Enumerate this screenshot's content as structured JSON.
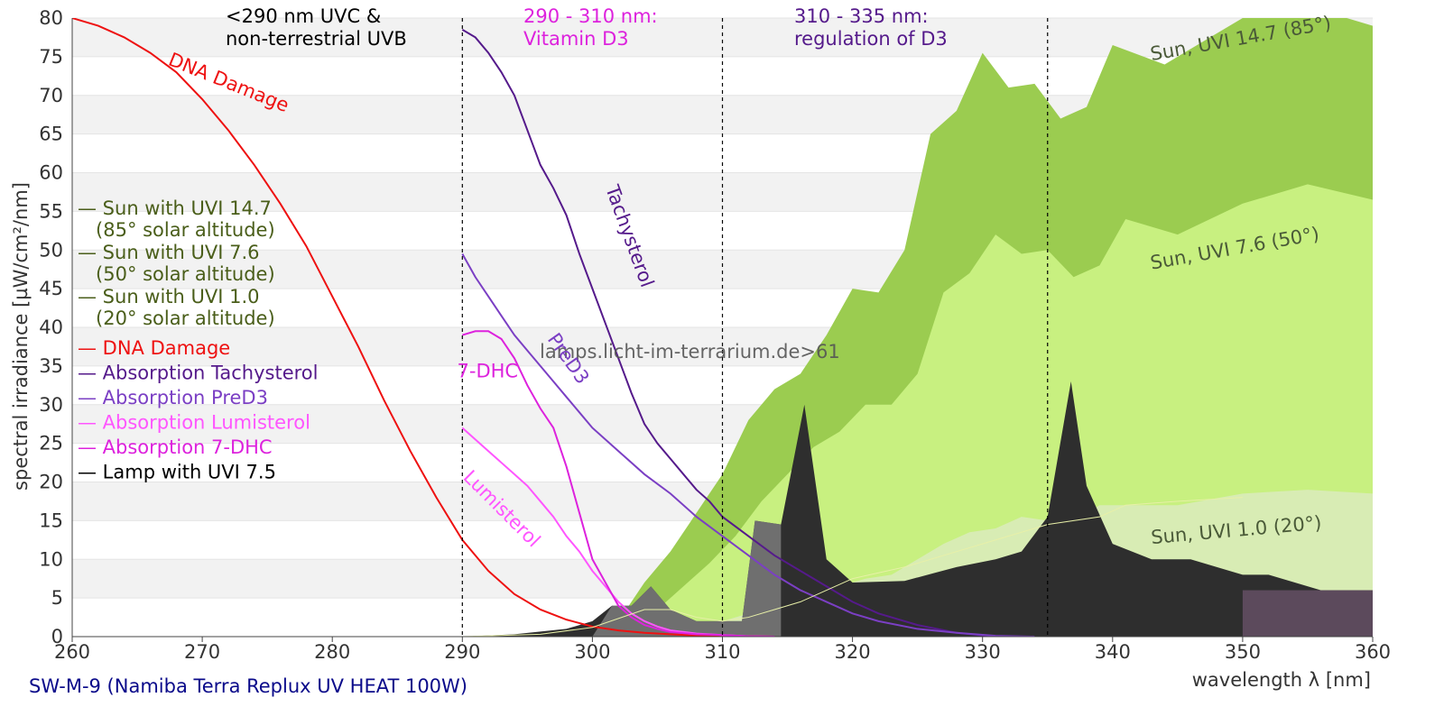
{
  "chart_data": {
    "type": "area",
    "xlabel": "wavelength λ [nm]",
    "ylabel": "spectral irradiance [µW/cm²/nm]",
    "xlim": [
      260,
      360
    ],
    "ylim": [
      0,
      80
    ],
    "x_ticks": [
      260,
      270,
      280,
      290,
      300,
      310,
      320,
      330,
      340,
      350,
      360
    ],
    "y_ticks": [
      0,
      5,
      10,
      15,
      20,
      25,
      30,
      35,
      40,
      45,
      50,
      55,
      60,
      65,
      70,
      75,
      80
    ],
    "grid": "horizontal bands",
    "footer": "SW-M-9 (Namiba Terra Replux UV HEAT 100W)",
    "watermark": "lamps.licht-im-terrarium.de>61",
    "regions": [
      {
        "x": 290,
        "label_lines": [
          "<290 nm UVC &",
          "non-terrestrial UVB"
        ],
        "color": "#000000"
      },
      {
        "x": 310,
        "label_lines": [
          "290 - 310 nm:",
          "Vitamin D3"
        ],
        "color": "#dd22dd"
      },
      {
        "x": 335,
        "label_lines": [
          "310 - 335 nm:",
          "regulation of D3"
        ],
        "color": "#551a8b"
      }
    ],
    "legend": {
      "position": "left",
      "items": [
        {
          "label_lines": [
            "— Sun with UVI 14.7",
            "   (85° solar altitude)"
          ],
          "color": "#4a5e1a"
        },
        {
          "label_lines": [
            "— Sun with UVI 7.6",
            "   (50° solar altitude)"
          ],
          "color": "#4a5e1a"
        },
        {
          "label_lines": [
            "— Sun with UVI 1.0",
            "   (20° solar altitude)"
          ],
          "color": "#4a5e1a"
        },
        {
          "label_lines": [
            "— DNA Damage"
          ],
          "color": "#ee1111"
        },
        {
          "label_lines": [
            "— Absorption Tachysterol"
          ],
          "color": "#551a8b"
        },
        {
          "label_lines": [
            "— Absorption PreD3"
          ],
          "color": "#7b3fc4"
        },
        {
          "label_lines": [
            "— Absorption Lumisterol"
          ],
          "color": "#ff55ff"
        },
        {
          "label_lines": [
            "— Absorption 7-DHC"
          ],
          "color": "#dd22dd"
        },
        {
          "label_lines": [
            "— Lamp with UVI 7.5"
          ],
          "color": "#000000"
        }
      ]
    },
    "areas": [
      {
        "name": "Sun, UVI 14.7 (85°)",
        "color": "#9bcc50",
        "label": {
          "text": "Sun, UVI 14.7 (85°)",
          "x": 343,
          "y": 74.5,
          "rotate": -10
        },
        "x": [
          300,
          302,
          304,
          306,
          308,
          310,
          312,
          314,
          316,
          318,
          320,
          322,
          324,
          326,
          328,
          330,
          332,
          334,
          336,
          338,
          340,
          344,
          346,
          350,
          354,
          356,
          360
        ],
        "y": [
          0,
          2,
          7,
          11,
          16,
          21,
          28,
          32,
          34,
          39,
          45,
          44.5,
          50,
          65,
          68,
          75.5,
          71,
          71.5,
          67,
          68.5,
          76.5,
          74,
          76,
          80,
          82,
          81,
          79
        ]
      },
      {
        "name": "Sun, UVI 7.6 (50°)",
        "color": "#c8f080",
        "label": {
          "text": "Sun, UVI 7.6 (50°)",
          "x": 343,
          "y": 47.5,
          "rotate": -10
        },
        "x": [
          301,
          303,
          305,
          307,
          309,
          311,
          313,
          315,
          317,
          319,
          321,
          323,
          325,
          327,
          329,
          331,
          333,
          335,
          337,
          339,
          341,
          345,
          350,
          355,
          360
        ],
        "y": [
          0,
          1.5,
          3.5,
          6.5,
          9.5,
          13,
          17.5,
          21,
          24.5,
          26.5,
          30,
          30,
          34,
          44.5,
          47,
          52,
          49.5,
          50,
          46.5,
          48,
          54,
          52,
          56,
          58.5,
          56.5
        ]
      },
      {
        "name": "Sun, UVI 1.0 (20°)",
        "color": "#d8ecb4",
        "label": {
          "text": "Sun, UVI 1.0 (20°)",
          "x": 343,
          "y": 12,
          "rotate": -5
        },
        "x": [
          303,
          305,
          307,
          309,
          311,
          313,
          315,
          317,
          319,
          321,
          323,
          325,
          327,
          329,
          331,
          333,
          335,
          337,
          339,
          341,
          345,
          350,
          355,
          360
        ],
        "y": [
          0,
          0.5,
          1,
          1.5,
          2.5,
          3.5,
          4.5,
          5.5,
          6.5,
          7.5,
          8,
          10,
          12,
          13.5,
          14,
          15.5,
          15,
          15,
          17,
          17,
          17,
          18.5,
          19,
          18.5
        ]
      },
      {
        "name": "Lamp with UVI 7.5",
        "color": "#2e2e2e",
        "x": [
          290,
          294,
          298,
          300,
          301.5,
          303,
          304.5,
          306,
          308,
          310,
          311.5,
          312.5,
          314.5,
          316.3,
          318,
          320,
          324,
          328,
          331,
          333,
          335,
          336.8,
          338,
          340,
          343,
          346,
          350,
          352,
          356,
          360
        ],
        "y": [
          0,
          0.3,
          1,
          2,
          4,
          4,
          6.5,
          3.5,
          2,
          2,
          2,
          15,
          14.5,
          30,
          10,
          7,
          7.2,
          9,
          10,
          11,
          15.5,
          33,
          19.5,
          12,
          10,
          10,
          8,
          8,
          6,
          6
        ]
      }
    ],
    "series": [
      {
        "name": "DNA Damage",
        "color": "#ee1111",
        "label": {
          "text": "DNA Damage",
          "x": 267.3,
          "y": 74,
          "rotate": 22
        },
        "x": [
          260,
          262,
          264,
          266,
          268,
          270,
          272,
          274,
          276,
          278,
          280,
          282,
          284,
          286,
          288,
          290,
          292,
          294,
          296,
          298,
          300,
          302,
          304,
          306,
          308,
          310,
          312,
          314
        ],
        "y": [
          80,
          79,
          77.5,
          75.5,
          73,
          69.5,
          65.5,
          61,
          56,
          50.5,
          44,
          37.5,
          30.5,
          24,
          18,
          12.5,
          8.5,
          5.5,
          3.5,
          2.2,
          1.3,
          0.8,
          0.5,
          0.3,
          0.15,
          0.1,
          0.05,
          0
        ]
      },
      {
        "name": "Absorption Tachysterol",
        "color": "#551a8b",
        "label": {
          "text": "Tachysterol",
          "x": 301,
          "y": 58,
          "rotate": 70
        },
        "x": [
          290,
          291,
          292,
          293,
          294,
          295,
          296,
          297,
          298,
          299,
          300,
          301,
          302,
          303,
          304,
          305,
          306,
          307,
          308,
          309,
          310,
          312,
          314,
          316,
          318,
          320,
          322,
          325,
          328,
          331
        ],
        "y": [
          78.5,
          77.5,
          75.5,
          73,
          70,
          65.5,
          61,
          58,
          54.5,
          49.5,
          45,
          40.5,
          36,
          31.5,
          27.5,
          25,
          23,
          21,
          19,
          17.5,
          15.5,
          13,
          10.5,
          8.5,
          6.5,
          4.5,
          3,
          1.5,
          0.5,
          0
        ]
      },
      {
        "name": "Absorption PreD3",
        "color": "#7b3fc4",
        "label": {
          "text": "PreD3",
          "x": 296.5,
          "y": 38.5,
          "rotate": 55
        },
        "x": [
          290,
          291,
          292,
          293,
          294,
          295,
          296,
          297,
          298,
          299,
          300,
          302,
          304,
          306,
          308,
          310,
          312,
          314,
          316,
          318,
          320,
          322,
          325,
          328,
          331,
          334
        ],
        "y": [
          49.5,
          46.5,
          44,
          41.5,
          39,
          37,
          35,
          33,
          31,
          29,
          27,
          24,
          21,
          18.5,
          15.5,
          13,
          10.5,
          8,
          6,
          4.5,
          3,
          2,
          1,
          0.5,
          0.1,
          0
        ]
      },
      {
        "name": "Absorption Lumisterol",
        "color": "#ff55ff",
        "label": {
          "text": "Lumisterol",
          "x": 290,
          "y": 20.5,
          "rotate": 45
        },
        "x": [
          290,
          291,
          292,
          293,
          294,
          295,
          296,
          297,
          298,
          299,
          300,
          301,
          302,
          303,
          304,
          305,
          306,
          308,
          310,
          312,
          314
        ],
        "y": [
          27,
          25.5,
          24,
          22.5,
          21,
          19.5,
          17.5,
          15.5,
          13,
          11,
          8.5,
          6.5,
          4.5,
          3,
          2,
          1.3,
          0.8,
          0.4,
          0.2,
          0.05,
          0
        ]
      },
      {
        "name": "Absorption 7-DHC",
        "color": "#dd22dd",
        "label": {
          "text": "7-DHC",
          "x": 289.6,
          "y": 33.5,
          "rotate": 0
        },
        "x": [
          290,
          291,
          292,
          293,
          294,
          295,
          296,
          297,
          298,
          299,
          300,
          301,
          302,
          303,
          304,
          305,
          306,
          308,
          310,
          312,
          314
        ],
        "y": [
          39,
          39.5,
          39.5,
          38.5,
          36,
          32.5,
          29.5,
          27,
          22,
          16,
          10,
          7,
          4,
          2.5,
          1.5,
          1,
          0.6,
          0.3,
          0.2,
          0.05,
          0
        ]
      },
      {
        "name": "Lamp UVI (thin)",
        "color": "#e8f0a8",
        "x": [
          290,
          296,
          300,
          304,
          306,
          308,
          310,
          312,
          314,
          316,
          318,
          320,
          324,
          328,
          332,
          335,
          337,
          339,
          341,
          345,
          350
        ],
        "y": [
          0,
          0.3,
          1.2,
          3.5,
          3.5,
          2.5,
          2,
          2.5,
          3.5,
          4.5,
          6,
          7.5,
          9,
          11,
          13,
          14.5,
          15,
          15.5,
          17,
          17.5,
          18
        ]
      }
    ],
    "lamp_band": {
      "x0": 350,
      "x1": 360,
      "y": 6,
      "color": "#5c4a5c"
    }
  }
}
